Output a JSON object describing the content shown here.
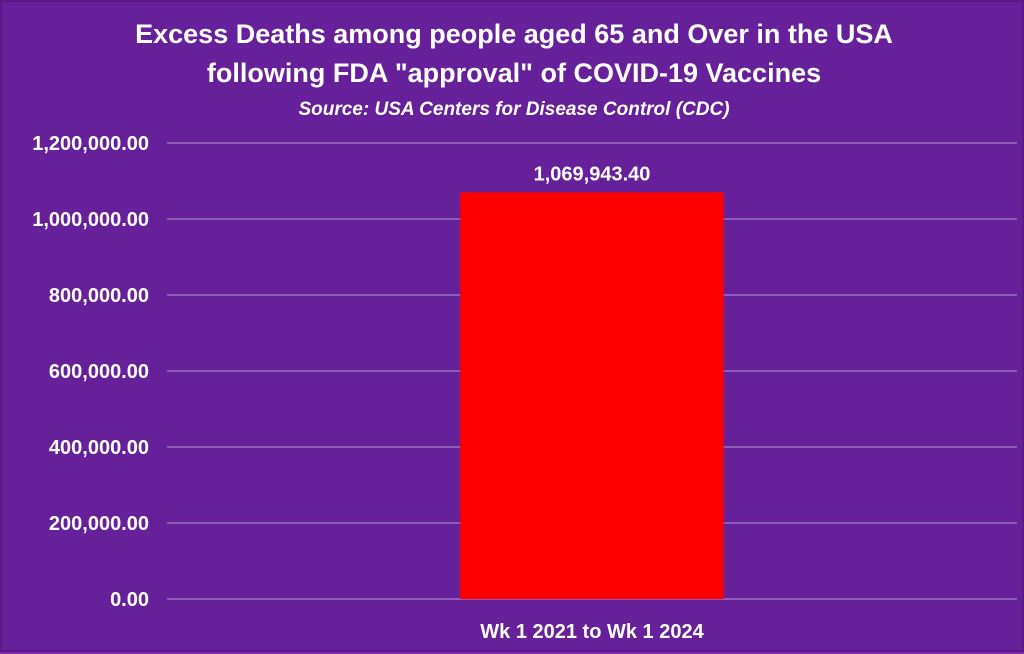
{
  "chart_data": {
    "type": "bar",
    "title_lines": [
      "Excess Deaths among people aged 65 and Over in the USA",
      "following FDA \"approval\" of COVID-19 Vaccines"
    ],
    "subtitle": "Source: USA Centers for Disease Control (CDC)",
    "categories": [
      "Wk 1 2021 to Wk 1 2024"
    ],
    "values": [
      1069943.4
    ],
    "data_labels": [
      "1,069,943.40"
    ],
    "ylim": [
      0,
      1200000
    ],
    "yticks": [
      0,
      200000,
      400000,
      600000,
      800000,
      1000000,
      1200000
    ],
    "ytick_labels": [
      "0.00",
      "200,000.00",
      "400,000.00",
      "600,000.00",
      "800,000.00",
      "1,000,000.00",
      "1,200,000.00"
    ],
    "grid": true,
    "legend": "none",
    "colors": {
      "background": "#66209a",
      "bar": "#ff0000",
      "text": "#ffffff",
      "gridline": "#b79ad0"
    }
  }
}
